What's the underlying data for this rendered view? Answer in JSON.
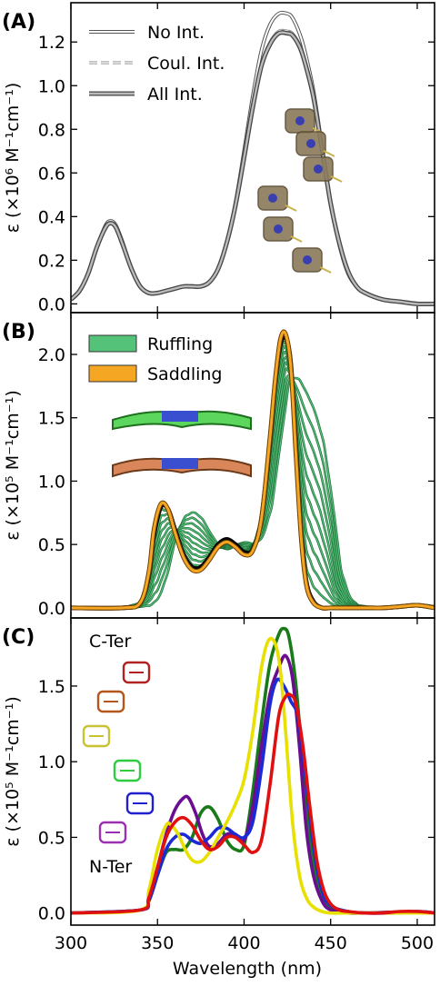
{
  "figure": {
    "xlabel": "Wavelength (nm)",
    "xticks": [
      300,
      350,
      400,
      450,
      500
    ],
    "xlim": [
      300,
      510
    ]
  },
  "chart_data": [
    {
      "type": "line",
      "panel_label": "(A)",
      "ylabel": "ε (×10⁶ M⁻¹cm⁻¹)",
      "ylim": [
        -0.04,
        1.38
      ],
      "yticks": [
        "0.0",
        "0.2",
        "0.4",
        "0.6",
        "0.8",
        "1.0",
        "1.2"
      ],
      "ytick_values": [
        0,
        0.2,
        0.4,
        0.6,
        0.8,
        1.0,
        1.2
      ],
      "legend": [
        {
          "label": "No Int.",
          "style": "open"
        },
        {
          "label": "Coul. Int.",
          "style": "dashed"
        },
        {
          "label": "All Int.",
          "style": "thick"
        }
      ],
      "series": [
        {
          "name": "No Int.",
          "color": "#555555",
          "style": "open",
          "x": [
            300,
            305,
            310,
            315,
            320,
            323,
            326,
            330,
            335,
            340,
            345,
            350,
            355,
            360,
            365,
            370,
            375,
            380,
            385,
            390,
            395,
            400,
            405,
            410,
            415,
            420,
            425,
            428,
            432,
            435,
            440,
            445,
            450,
            455,
            460,
            465,
            470,
            480,
            490,
            500,
            510
          ],
          "y": [
            0.02,
            0.06,
            0.14,
            0.26,
            0.36,
            0.38,
            0.36,
            0.28,
            0.16,
            0.08,
            0.05,
            0.05,
            0.06,
            0.07,
            0.08,
            0.08,
            0.08,
            0.1,
            0.16,
            0.28,
            0.46,
            0.7,
            0.95,
            1.16,
            1.28,
            1.33,
            1.33,
            1.31,
            1.24,
            1.16,
            0.98,
            0.72,
            0.46,
            0.27,
            0.14,
            0.08,
            0.05,
            0.02,
            0.01,
            0.0,
            0.0
          ]
        },
        {
          "name": "Coul. Int.",
          "color": "#888888",
          "style": "dashed",
          "x": [
            300,
            305,
            310,
            315,
            320,
            323,
            326,
            330,
            335,
            340,
            345,
            350,
            355,
            360,
            365,
            370,
            375,
            380,
            385,
            390,
            395,
            400,
            405,
            410,
            415,
            420,
            425,
            428,
            432,
            435,
            440,
            445,
            450,
            455,
            460,
            465,
            470,
            480,
            490,
            500,
            510
          ],
          "y": [
            0.02,
            0.06,
            0.14,
            0.26,
            0.35,
            0.37,
            0.35,
            0.27,
            0.16,
            0.08,
            0.05,
            0.05,
            0.06,
            0.07,
            0.08,
            0.08,
            0.08,
            0.1,
            0.16,
            0.28,
            0.45,
            0.68,
            0.92,
            1.1,
            1.2,
            1.25,
            1.25,
            1.24,
            1.19,
            1.12,
            0.96,
            0.72,
            0.47,
            0.28,
            0.15,
            0.08,
            0.05,
            0.02,
            0.01,
            0.0,
            0.0
          ]
        },
        {
          "name": "All Int.",
          "color": "#666666",
          "style": "thick",
          "x": [
            300,
            305,
            310,
            315,
            320,
            323,
            326,
            330,
            335,
            340,
            345,
            350,
            355,
            360,
            365,
            370,
            375,
            380,
            385,
            390,
            395,
            400,
            405,
            410,
            415,
            420,
            425,
            428,
            432,
            435,
            440,
            445,
            450,
            455,
            460,
            465,
            470,
            480,
            490,
            500,
            510
          ],
          "y": [
            0.02,
            0.06,
            0.14,
            0.26,
            0.35,
            0.37,
            0.35,
            0.27,
            0.16,
            0.08,
            0.05,
            0.05,
            0.06,
            0.07,
            0.08,
            0.08,
            0.08,
            0.1,
            0.16,
            0.28,
            0.45,
            0.67,
            0.9,
            1.09,
            1.19,
            1.24,
            1.24,
            1.23,
            1.18,
            1.11,
            0.95,
            0.71,
            0.46,
            0.28,
            0.15,
            0.08,
            0.05,
            0.02,
            0.01,
            0.0,
            0.0
          ]
        }
      ]
    },
    {
      "type": "line",
      "panel_label": "(B)",
      "ylabel": "ε (×10⁵ M⁻¹cm⁻¹)",
      "ylim": [
        -0.08,
        2.33
      ],
      "yticks": [
        "0.0",
        "0.5",
        "1.0",
        "1.5",
        "2.0"
      ],
      "ytick_values": [
        0,
        0.5,
        1.0,
        1.5,
        2.0
      ],
      "legend": [
        {
          "label": "Ruffling",
          "color": "#55c27a"
        },
        {
          "label": "Saddling",
          "color": "#f5a623"
        }
      ],
      "series": [
        {
          "name": "Ruffling",
          "color": "#2e9a50",
          "x": [
            300,
            330,
            340,
            345,
            350,
            355,
            360,
            365,
            370,
            375,
            380,
            385,
            390,
            395,
            400,
            405,
            410,
            415,
            420,
            423,
            426,
            430,
            435,
            440,
            445,
            450,
            455,
            460,
            470,
            480,
            490,
            500,
            510
          ],
          "y": [
            0.0,
            0.0,
            0.02,
            0.08,
            0.28,
            0.58,
            0.72,
            0.76,
            0.7,
            0.58,
            0.48,
            0.46,
            0.5,
            0.52,
            0.5,
            0.56,
            0.8,
            1.3,
            1.78,
            1.82,
            1.8,
            1.7,
            1.55,
            1.3,
            0.85,
            0.3,
            0.08,
            0.02,
            0.0,
            0.0,
            0.02,
            0.02,
            0.0
          ]
        },
        {
          "name": "Saddling",
          "color": "#f39a1e",
          "x": [
            300,
            330,
            340,
            345,
            348,
            352,
            356,
            360,
            365,
            370,
            375,
            380,
            385,
            390,
            395,
            400,
            405,
            410,
            415,
            418,
            421,
            424,
            427,
            430,
            433,
            436,
            440,
            445,
            450,
            460,
            470,
            480,
            490,
            500,
            510
          ],
          "y": [
            0.0,
            0.0,
            0.04,
            0.28,
            0.62,
            0.82,
            0.78,
            0.6,
            0.4,
            0.3,
            0.3,
            0.38,
            0.48,
            0.52,
            0.48,
            0.42,
            0.45,
            0.7,
            1.35,
            1.8,
            2.12,
            2.16,
            1.9,
            1.2,
            0.55,
            0.18,
            0.04,
            0.0,
            0.0,
            0.0,
            0.0,
            0.0,
            0.01,
            0.02,
            0.0
          ]
        },
        {
          "name": "",
          "color": "#000000",
          "x": [
            300,
            330,
            340,
            345,
            348,
            352,
            356,
            360,
            365,
            370,
            375,
            380,
            385,
            390,
            395,
            400,
            405,
            410,
            415,
            418,
            421,
            424,
            427,
            430,
            433,
            436,
            440,
            445,
            450,
            460,
            470,
            480,
            490,
            500,
            510
          ],
          "y": [
            0.0,
            0.0,
            0.04,
            0.26,
            0.58,
            0.8,
            0.78,
            0.62,
            0.42,
            0.32,
            0.32,
            0.4,
            0.5,
            0.54,
            0.5,
            0.44,
            0.46,
            0.7,
            1.32,
            1.78,
            2.08,
            2.14,
            1.92,
            1.25,
            0.58,
            0.2,
            0.05,
            0.0,
            0.0,
            0.0,
            0.0,
            0.0,
            0.01,
            0.02,
            0.0
          ]
        }
      ]
    },
    {
      "type": "line",
      "panel_label": "(C)",
      "ylabel": "ε (×10⁵ M⁻¹cm⁻¹)",
      "ylim": [
        -0.08,
        1.95
      ],
      "yticks": [
        "0.0",
        "0.5",
        "1.0",
        "1.5"
      ],
      "ytick_values": [
        0,
        0.5,
        1.0,
        1.5
      ],
      "annotations": {
        "top": "C-Ter",
        "bottom": "N-Ter"
      },
      "series": [
        {
          "name": "",
          "color": "#1a7a1a",
          "x": [
            300,
            340,
            345,
            350,
            355,
            360,
            365,
            370,
            375,
            380,
            385,
            390,
            395,
            400,
            405,
            410,
            415,
            420,
            423,
            426,
            430,
            435,
            440,
            445,
            450,
            460,
            470,
            500,
            510
          ],
          "y": [
            0.0,
            0.02,
            0.08,
            0.25,
            0.4,
            0.42,
            0.42,
            0.5,
            0.66,
            0.7,
            0.62,
            0.48,
            0.42,
            0.45,
            0.8,
            1.25,
            1.65,
            1.84,
            1.88,
            1.82,
            1.5,
            0.85,
            0.35,
            0.12,
            0.04,
            0.01,
            0.0,
            0.01,
            0.0
          ]
        },
        {
          "name": "",
          "color": "#6a0d91",
          "x": [
            300,
            340,
            345,
            350,
            355,
            360,
            365,
            368,
            372,
            376,
            380,
            385,
            390,
            395,
            400,
            405,
            410,
            415,
            420,
            424,
            428,
            432,
            436,
            440,
            445,
            450,
            460,
            470,
            500,
            510
          ],
          "y": [
            0.0,
            0.02,
            0.1,
            0.3,
            0.52,
            0.68,
            0.76,
            0.76,
            0.66,
            0.52,
            0.44,
            0.46,
            0.52,
            0.52,
            0.48,
            0.7,
            1.1,
            1.45,
            1.62,
            1.7,
            1.55,
            1.1,
            0.55,
            0.25,
            0.08,
            0.02,
            0.0,
            0.0,
            0.01,
            0.0
          ]
        },
        {
          "name": "",
          "color": "#1a2ad4",
          "x": [
            300,
            340,
            345,
            350,
            355,
            360,
            365,
            370,
            375,
            380,
            385,
            390,
            395,
            400,
            405,
            410,
            415,
            419,
            423,
            427,
            431,
            435,
            440,
            445,
            450,
            460,
            470,
            500,
            510
          ],
          "y": [
            0.0,
            0.02,
            0.08,
            0.25,
            0.42,
            0.5,
            0.52,
            0.48,
            0.46,
            0.5,
            0.56,
            0.56,
            0.52,
            0.5,
            0.6,
            0.95,
            1.38,
            1.54,
            1.5,
            1.4,
            1.3,
            0.95,
            0.45,
            0.15,
            0.05,
            0.01,
            0.0,
            0.0,
            0.0
          ]
        },
        {
          "name": "",
          "color": "#e8e000",
          "x": [
            300,
            340,
            345,
            350,
            355,
            358,
            362,
            366,
            370,
            375,
            380,
            385,
            390,
            395,
            400,
            405,
            410,
            414,
            418,
            421,
            424,
            428,
            432,
            436,
            440,
            445,
            450,
            460,
            470,
            500,
            510
          ],
          "y": [
            0.0,
            0.02,
            0.15,
            0.42,
            0.58,
            0.58,
            0.52,
            0.42,
            0.35,
            0.34,
            0.4,
            0.5,
            0.6,
            0.72,
            0.88,
            1.2,
            1.62,
            1.8,
            1.78,
            1.6,
            1.2,
            0.6,
            0.25,
            0.1,
            0.04,
            0.01,
            0.0,
            0.0,
            0.0,
            0.0,
            0.0
          ]
        },
        {
          "name": "",
          "color": "#e01010",
          "x": [
            300,
            340,
            345,
            350,
            355,
            360,
            365,
            370,
            375,
            380,
            385,
            390,
            395,
            400,
            405,
            410,
            415,
            420,
            424,
            427,
            430,
            434,
            438,
            442,
            446,
            450,
            455,
            460,
            470,
            480,
            490,
            500,
            510
          ],
          "y": [
            0.0,
            0.02,
            0.1,
            0.3,
            0.5,
            0.6,
            0.63,
            0.58,
            0.48,
            0.42,
            0.44,
            0.5,
            0.5,
            0.45,
            0.4,
            0.48,
            0.85,
            1.3,
            1.43,
            1.44,
            1.38,
            1.1,
            0.7,
            0.35,
            0.15,
            0.06,
            0.02,
            0.01,
            0.0,
            0.0,
            0.01,
            0.01,
            0.0
          ]
        }
      ]
    }
  ]
}
